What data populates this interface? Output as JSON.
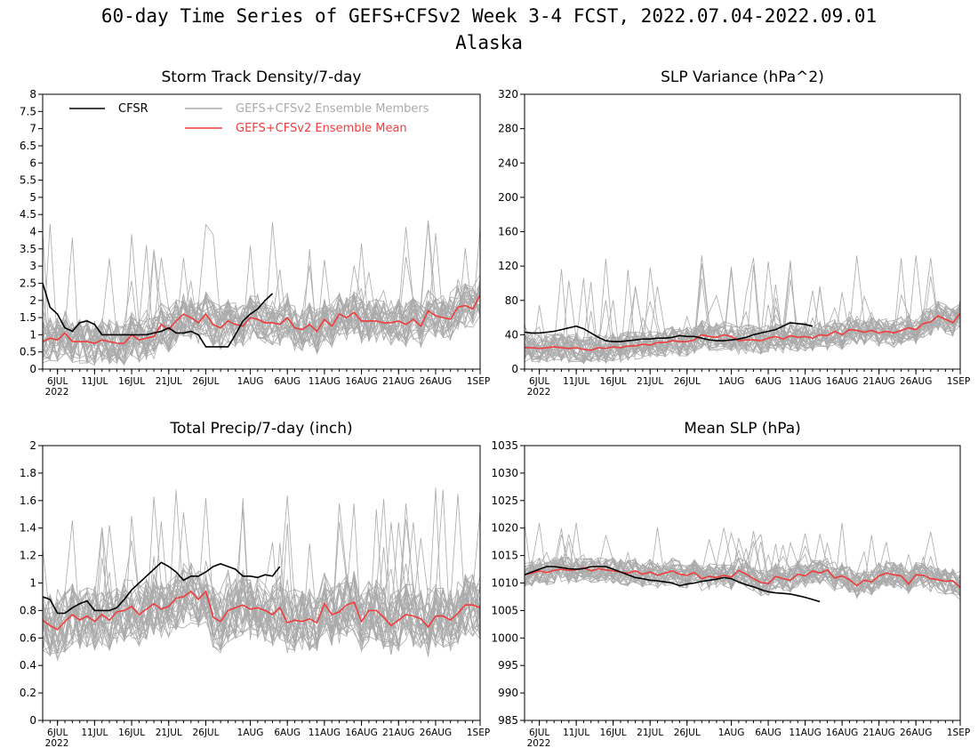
{
  "title": "60-day Time Series of GEFS+CFSv2 Week 3-4 FCST, 2022.07.04-2022.09.01",
  "subtitle": "Alaska",
  "legend": {
    "cfsr": "CFSR",
    "members": "GEFS+CFSv2 Ensemble Members",
    "mean": "GEFS+CFSv2 Ensemble Mean"
  },
  "colors": {
    "cfsr": "#000000",
    "members": "#aaaaaa",
    "mean": "#f03c3c"
  },
  "x_ticks": [
    "6JUL",
    "11JUL",
    "16JUL",
    "21JUL",
    "26JUL",
    "1AUG",
    "6AUG",
    "11AUG",
    "16AUG",
    "21AUG",
    "26AUG",
    "1SEP"
  ],
  "x_tick_days": [
    2,
    7,
    12,
    17,
    22,
    28,
    33,
    38,
    43,
    48,
    53,
    59
  ],
  "x_year": "2022",
  "chart_data": [
    {
      "type": "line",
      "title": "Storm Track Density/7-day",
      "xlim": [
        0,
        59
      ],
      "ylim": [
        0,
        8
      ],
      "yticks": [
        "0",
        "0.5",
        "1",
        "1.5",
        "2",
        "2.5",
        "3",
        "3.5",
        "4",
        "4.5",
        "5",
        "5.5",
        "6",
        "6.5",
        "7",
        "7.5",
        "8"
      ],
      "ytick_values": [
        0,
        0.5,
        1,
        1.5,
        2,
        2.5,
        3,
        3.5,
        4,
        4.5,
        5,
        5.5,
        6,
        6.5,
        7,
        7.5,
        8
      ],
      "cfsr_x": [
        0,
        1,
        2,
        3,
        4,
        5,
        6,
        7,
        8,
        9,
        10,
        11,
        12,
        13,
        14,
        15,
        16,
        17,
        18,
        19,
        20,
        21,
        22,
        23,
        24,
        25,
        26,
        27,
        28,
        29,
        30,
        31
      ],
      "cfsr": [
        2.5,
        1.8,
        1.6,
        1.2,
        1.1,
        1.35,
        1.4,
        1.3,
        1.0,
        1.0,
        1.0,
        1.0,
        1.0,
        1.0,
        1.0,
        1.05,
        1.1,
        1.2,
        1.05,
        1.05,
        1.1,
        1.0,
        0.65,
        0.65,
        0.65,
        0.65,
        1.0,
        1.4,
        1.6,
        1.75,
        2.0,
        2.2
      ],
      "mean": [
        0.8,
        0.9,
        0.85,
        1.05,
        0.8,
        0.8,
        0.8,
        0.75,
        0.85,
        0.8,
        0.75,
        0.75,
        1.0,
        0.85,
        0.9,
        0.95,
        1.3,
        1.15,
        1.4,
        1.6,
        1.5,
        1.35,
        1.6,
        1.3,
        1.2,
        1.4,
        1.3,
        1.25,
        1.5,
        1.45,
        1.35,
        1.35,
        1.3,
        1.5,
        1.2,
        1.15,
        1.3,
        1.1,
        1.45,
        1.25,
        1.6,
        1.5,
        1.65,
        1.4,
        1.4,
        1.4,
        1.35,
        1.35,
        1.4,
        1.3,
        1.45,
        1.25,
        1.7,
        1.55,
        1.5,
        1.45,
        1.8,
        1.85,
        1.75,
        2.15
      ],
      "member_center": 1.35,
      "member_spread": 0.65,
      "member_max": 4.4
    },
    {
      "type": "line",
      "title": "SLP Variance (hPa^2)",
      "xlim": [
        0,
        59
      ],
      "ylim": [
        0,
        320
      ],
      "yticks": [
        "0",
        "40",
        "80",
        "120",
        "160",
        "200",
        "240",
        "280",
        "320"
      ],
      "ytick_values": [
        0,
        40,
        80,
        120,
        160,
        200,
        240,
        280,
        320
      ],
      "cfsr_x": [
        0,
        1,
        2,
        3,
        4,
        5,
        6,
        7,
        8,
        9,
        10,
        11,
        12,
        13,
        14,
        15,
        16,
        17,
        18,
        19,
        20,
        21,
        22,
        23,
        24,
        25,
        26,
        27,
        28,
        29,
        30,
        31,
        32,
        33,
        34,
        35,
        36,
        37,
        38,
        39
      ],
      "cfsr": [
        43,
        42,
        42,
        43,
        44,
        46,
        48,
        50,
        47,
        42,
        37,
        33,
        32,
        32,
        33,
        34,
        35,
        35,
        36,
        36,
        37,
        39,
        38,
        38,
        36,
        34,
        33,
        33,
        34,
        35,
        37,
        40,
        42,
        44,
        46,
        50,
        54,
        53,
        52,
        50
      ],
      "mean": [
        25,
        25,
        24,
        25,
        26,
        25,
        24,
        25,
        23,
        22,
        25,
        24,
        26,
        25,
        27,
        27,
        29,
        28,
        31,
        31,
        33,
        32,
        32,
        34,
        40,
        38,
        37,
        40,
        38,
        33,
        34,
        34,
        33,
        36,
        38,
        35,
        39,
        37,
        38,
        36,
        40,
        39,
        44,
        40,
        46,
        45,
        43,
        45,
        42,
        44,
        42,
        45,
        48,
        46,
        53,
        55,
        62,
        58,
        54,
        65
      ],
      "member_center": 40,
      "member_spread": 17,
      "member_max": 135
    },
    {
      "type": "line",
      "title": "Total Precip/7-day (inch)",
      "xlim": [
        0,
        59
      ],
      "ylim": [
        0,
        2
      ],
      "yticks": [
        "0",
        "0.2",
        "0.4",
        "0.6",
        "0.8",
        "1",
        "1.2",
        "1.4",
        "1.6",
        "1.8",
        "2"
      ],
      "ytick_values": [
        0,
        0.2,
        0.4,
        0.6,
        0.8,
        1,
        1.2,
        1.4,
        1.6,
        1.8,
        2
      ],
      "cfsr_x": [
        0,
        1,
        2,
        3,
        4,
        5,
        6,
        7,
        8,
        9,
        10,
        11,
        12,
        13,
        14,
        15,
        16,
        17,
        18,
        19,
        20,
        21,
        22,
        23,
        24,
        25,
        26,
        27,
        28,
        29,
        30,
        31,
        32
      ],
      "cfsr": [
        0.9,
        0.88,
        0.78,
        0.78,
        0.82,
        0.85,
        0.87,
        0.8,
        0.8,
        0.8,
        0.82,
        0.88,
        0.95,
        1.0,
        1.05,
        1.1,
        1.15,
        1.12,
        1.08,
        1.02,
        1.05,
        1.05,
        1.08,
        1.12,
        1.14,
        1.12,
        1.1,
        1.05,
        1.05,
        1.04,
        1.06,
        1.05,
        1.12
      ],
      "mean": [
        0.73,
        0.69,
        0.66,
        0.72,
        0.77,
        0.73,
        0.76,
        0.72,
        0.77,
        0.73,
        0.79,
        0.8,
        0.83,
        0.77,
        0.81,
        0.85,
        0.81,
        0.83,
        0.89,
        0.9,
        0.94,
        0.88,
        0.94,
        0.75,
        0.72,
        0.8,
        0.82,
        0.84,
        0.81,
        0.82,
        0.8,
        0.77,
        0.82,
        0.71,
        0.73,
        0.72,
        0.74,
        0.71,
        0.85,
        0.77,
        0.79,
        0.84,
        0.86,
        0.72,
        0.8,
        0.8,
        0.75,
        0.69,
        0.73,
        0.77,
        0.76,
        0.74,
        0.68,
        0.76,
        0.76,
        0.73,
        0.78,
        0.84,
        0.84,
        0.82
      ],
      "member_center": 0.82,
      "member_spread": 0.23,
      "member_max": 1.7
    },
    {
      "type": "line",
      "title": "Mean SLP (hPa)",
      "xlim": [
        0,
        59
      ],
      "ylim": [
        985,
        1035
      ],
      "yticks": [
        "985",
        "990",
        "995",
        "1000",
        "1005",
        "1010",
        "1015",
        "1020",
        "1025",
        "1030",
        "1035"
      ],
      "ytick_values": [
        985,
        990,
        995,
        1000,
        1005,
        1010,
        1015,
        1020,
        1025,
        1030,
        1035
      ],
      "cfsr_x": [
        0,
        1,
        2,
        3,
        4,
        5,
        6,
        7,
        8,
        9,
        10,
        11,
        12,
        13,
        14,
        15,
        16,
        17,
        18,
        19,
        20,
        21,
        22,
        23,
        24,
        25,
        26,
        27,
        28,
        29,
        30,
        31,
        32,
        33,
        34,
        35,
        36,
        37,
        38,
        39,
        40
      ],
      "cfsr": [
        1011.5,
        1012,
        1012.5,
        1013,
        1013,
        1012.8,
        1012.6,
        1012.5,
        1012.6,
        1013,
        1013,
        1013,
        1012.5,
        1012,
        1011.5,
        1011,
        1010.8,
        1010.5,
        1010.4,
        1010.2,
        1010,
        1009.5,
        1009.8,
        1010,
        1010.3,
        1010.5,
        1010.7,
        1011,
        1010.8,
        1010.2,
        1009.7,
        1009.3,
        1008.8,
        1008.4,
        1008.2,
        1008.1,
        1008,
        1007.7,
        1007.4,
        1007,
        1006.6
      ],
      "mean": [
        1011.5,
        1011.8,
        1012.2,
        1011.9,
        1012.3,
        1012.5,
        1012.3,
        1012.4,
        1012.8,
        1012.2,
        1012.6,
        1012.4,
        1012.2,
        1012,
        1011.8,
        1012.2,
        1011.6,
        1012,
        1011.4,
        1011.8,
        1012.2,
        1011.6,
        1011.4,
        1011.9,
        1010.8,
        1011.2,
        1011,
        1011.4,
        1011.1,
        1012.3,
        1011.6,
        1010.8,
        1010.1,
        1009.9,
        1011.2,
        1010.8,
        1010.5,
        1011.6,
        1011.3,
        1012.2,
        1011.8,
        1012.4,
        1010.9,
        1011.3,
        1010.6,
        1009.5,
        1010.5,
        1010.2,
        1011.3,
        1011.8,
        1011.5,
        1011.3,
        1009.8,
        1011.5,
        1011.4,
        1010.8,
        1010.6,
        1010.3,
        1010.4,
        1009.2
      ],
      "member_center": 1011,
      "member_spread": 2.4,
      "member_max": 1021
    }
  ]
}
